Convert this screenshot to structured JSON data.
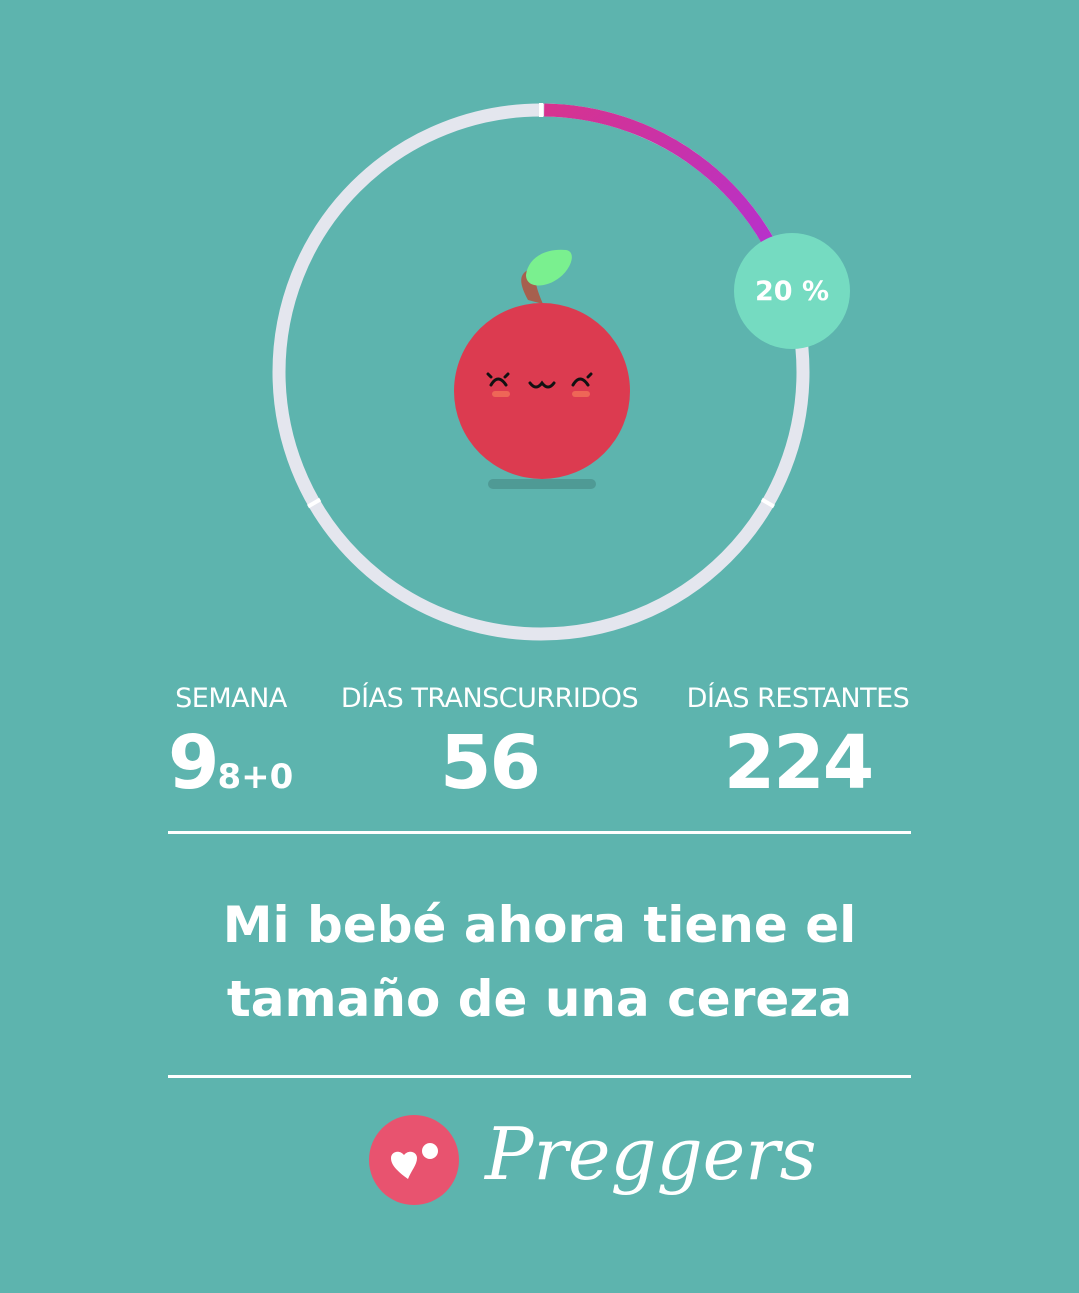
{
  "progress": {
    "percent": 20,
    "label": "20 %",
    "track_color": "#e4e6ee",
    "fill_gradient": [
      "#d6338f",
      "#b030d8"
    ],
    "badge_color": "#75dbc1"
  },
  "fruit": {
    "name": "cereza",
    "color": "#dc3b50"
  },
  "stats": {
    "week": {
      "label": "SEMANA",
      "value": "9",
      "sub": "8+0"
    },
    "elapsed": {
      "label": "DÍAS TRANSCURRIDOS",
      "value": "56"
    },
    "remaining": {
      "label": "DÍAS RESTANTES",
      "value": "224"
    }
  },
  "message": {
    "line1": "Mi bebé ahora tiene el",
    "line2": "tamaño de una cereza"
  },
  "brand": {
    "name": "Preggers",
    "logo_color": "#e8536f"
  }
}
